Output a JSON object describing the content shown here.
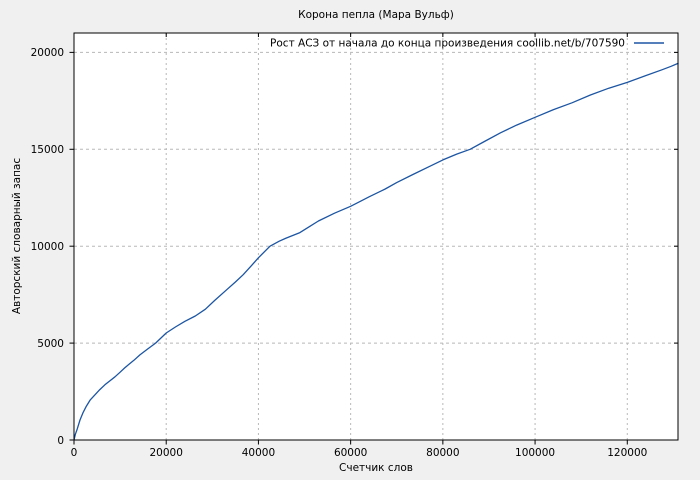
{
  "window": {
    "background_color": "#f0f0f0",
    "plot_background_color": "#ffffff",
    "border_color": "#000000",
    "grid_color": "#b8b8b8",
    "text_color": "#000000"
  },
  "chart_data": {
    "type": "line",
    "title": "Корона пепла (Мара Вульф)",
    "xlabel": "Счетчик слов",
    "ylabel": "Авторский словарный запас",
    "legend_label": "Рост АСЗ от начала до конца произведения coollib.net/b/707590",
    "legend_position": "top-right-inside",
    "grid": true,
    "line_color": "#1c55a3",
    "xlim": [
      0,
      131000
    ],
    "ylim": [
      0,
      21000
    ],
    "xticks": [
      0,
      20000,
      40000,
      60000,
      80000,
      100000,
      120000
    ],
    "yticks": [
      0,
      5000,
      10000,
      15000,
      20000
    ],
    "series": [
      {
        "name": "Рост АСЗ от начала до конца произведения coollib.net/b/707590",
        "points": [
          [
            0,
            0
          ],
          [
            300,
            300
          ],
          [
            700,
            560
          ],
          [
            1300,
            1030
          ],
          [
            2000,
            1430
          ],
          [
            2700,
            1750
          ],
          [
            3500,
            2060
          ],
          [
            4600,
            2340
          ],
          [
            5600,
            2600
          ],
          [
            6700,
            2850
          ],
          [
            7800,
            3060
          ],
          [
            8900,
            3260
          ],
          [
            10000,
            3500
          ],
          [
            11000,
            3720
          ],
          [
            12000,
            3920
          ],
          [
            13000,
            4110
          ],
          [
            14300,
            4390
          ],
          [
            16000,
            4700
          ],
          [
            17700,
            5000
          ],
          [
            20000,
            5520
          ],
          [
            22000,
            5830
          ],
          [
            24000,
            6120
          ],
          [
            26300,
            6400
          ],
          [
            28500,
            6750
          ],
          [
            30500,
            7200
          ],
          [
            33100,
            7750
          ],
          [
            35000,
            8150
          ],
          [
            36700,
            8530
          ],
          [
            38500,
            9000
          ],
          [
            40000,
            9400
          ],
          [
            42500,
            10000
          ],
          [
            44500,
            10260
          ],
          [
            46000,
            10420
          ],
          [
            49000,
            10700
          ],
          [
            51000,
            11000
          ],
          [
            53000,
            11300
          ],
          [
            56500,
            11700
          ],
          [
            60000,
            12060
          ],
          [
            62000,
            12300
          ],
          [
            64000,
            12550
          ],
          [
            67500,
            12950
          ],
          [
            70000,
            13280
          ],
          [
            73500,
            13700
          ],
          [
            77000,
            14100
          ],
          [
            80000,
            14450
          ],
          [
            83000,
            14750
          ],
          [
            85900,
            15000
          ],
          [
            89000,
            15400
          ],
          [
            92500,
            15850
          ],
          [
            96000,
            16250
          ],
          [
            100000,
            16650
          ],
          [
            104000,
            17050
          ],
          [
            108000,
            17400
          ],
          [
            112000,
            17800
          ],
          [
            116000,
            18150
          ],
          [
            120000,
            18450
          ],
          [
            124000,
            18800
          ],
          [
            127500,
            19100
          ],
          [
            129500,
            19280
          ],
          [
            131000,
            19430
          ]
        ]
      }
    ]
  }
}
